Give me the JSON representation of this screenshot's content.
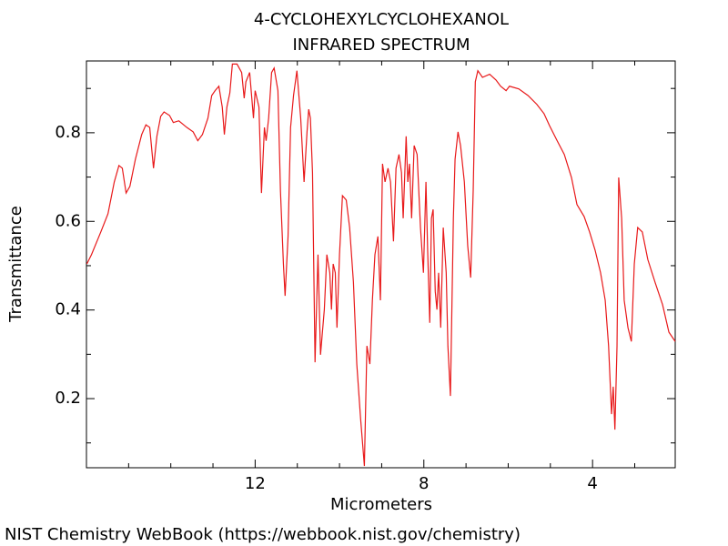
{
  "chart_data": {
    "type": "line",
    "title": "4-CYCLOHEXYLCYCLOHEXANOL",
    "subtitle": "INFRARED SPECTRUM",
    "x_label": "Micrometers",
    "y_label": "Transmittance",
    "source": "NIST Chemistry WebBook (https://webbook.nist.gov/chemistry)",
    "xlim": [
      16,
      2.04
    ],
    "ylim": [
      0.044,
      0.962
    ],
    "xticks": [
      12,
      8,
      4
    ],
    "yticks": [
      0.2,
      0.4,
      0.6,
      0.8
    ],
    "xminorticks": [
      15,
      14,
      13,
      11,
      10,
      9,
      7,
      6,
      5,
      3
    ],
    "yminorticks": [
      0.1,
      0.3,
      0.5,
      0.7,
      0.9
    ],
    "series": [
      {
        "color": "#e8191a",
        "x": [
          15.99,
          15.88,
          15.66,
          15.49,
          15.34,
          15.23,
          15.15,
          15.06,
          14.97,
          14.84,
          14.69,
          14.59,
          14.5,
          14.41,
          14.33,
          14.24,
          14.16,
          14.03,
          13.94,
          13.81,
          13.62,
          13.47,
          13.36,
          13.25,
          13.12,
          13.03,
          12.95,
          12.86,
          12.78,
          12.73,
          12.67,
          12.6,
          12.54,
          12.43,
          12.32,
          12.26,
          12.22,
          12.13,
          12.04,
          12.0,
          11.91,
          11.85,
          11.78,
          11.74,
          11.68,
          11.61,
          11.55,
          11.46,
          11.4,
          11.33,
          11.29,
          11.22,
          11.16,
          11.09,
          11.01,
          10.92,
          10.84,
          10.77,
          10.73,
          10.69,
          10.64,
          10.58,
          10.51,
          10.45,
          10.36,
          10.3,
          10.23,
          10.19,
          10.15,
          10.1,
          10.06,
          10.0,
          9.93,
          9.84,
          9.76,
          9.67,
          9.59,
          9.5,
          9.41,
          9.35,
          9.28,
          9.22,
          9.16,
          9.09,
          9.03,
          8.98,
          8.92,
          8.85,
          8.79,
          8.72,
          8.66,
          8.59,
          8.53,
          8.49,
          8.42,
          8.38,
          8.34,
          8.29,
          8.23,
          8.16,
          8.08,
          8.01,
          7.95,
          7.91,
          7.86,
          7.82,
          7.78,
          7.73,
          7.69,
          7.65,
          7.6,
          7.54,
          7.47,
          7.43,
          7.37,
          7.3,
          7.26,
          7.19,
          7.13,
          7.04,
          6.96,
          6.89,
          6.83,
          6.78,
          6.72,
          6.61,
          6.44,
          6.29,
          6.18,
          6.05,
          5.97,
          5.75,
          5.53,
          5.32,
          5.15,
          5.02,
          4.84,
          4.67,
          4.5,
          4.37,
          4.2,
          4.07,
          3.94,
          3.81,
          3.7,
          3.62,
          3.55,
          3.51,
          3.47,
          3.42,
          3.38,
          3.31,
          3.25,
          3.16,
          3.08,
          3.01,
          2.93,
          2.82,
          2.69,
          2.52,
          2.34,
          2.19,
          2.04
        ],
        "values": [
          0.504,
          0.525,
          0.576,
          0.617,
          0.689,
          0.726,
          0.72,
          0.664,
          0.679,
          0.74,
          0.796,
          0.818,
          0.812,
          0.72,
          0.792,
          0.837,
          0.847,
          0.839,
          0.823,
          0.827,
          0.812,
          0.802,
          0.782,
          0.796,
          0.833,
          0.884,
          0.895,
          0.905,
          0.858,
          0.796,
          0.858,
          0.89,
          0.955,
          0.955,
          0.936,
          0.878,
          0.915,
          0.936,
          0.833,
          0.895,
          0.858,
          0.664,
          0.812,
          0.782,
          0.833,
          0.936,
          0.946,
          0.895,
          0.669,
          0.504,
          0.432,
          0.566,
          0.812,
          0.884,
          0.94,
          0.833,
          0.689,
          0.802,
          0.853,
          0.833,
          0.71,
          0.282,
          0.525,
          0.299,
          0.401,
          0.525,
          0.484,
          0.401,
          0.504,
          0.484,
          0.36,
          0.525,
          0.658,
          0.648,
          0.586,
          0.463,
          0.278,
          0.155,
          0.048,
          0.319,
          0.278,
          0.422,
          0.525,
          0.566,
          0.422,
          0.73,
          0.689,
          0.72,
          0.689,
          0.555,
          0.72,
          0.751,
          0.71,
          0.607,
          0.792,
          0.689,
          0.73,
          0.607,
          0.771,
          0.751,
          0.586,
          0.484,
          0.689,
          0.535,
          0.371,
          0.607,
          0.627,
          0.442,
          0.401,
          0.484,
          0.36,
          0.586,
          0.484,
          0.319,
          0.206,
          0.607,
          0.74,
          0.802,
          0.771,
          0.689,
          0.545,
          0.473,
          0.669,
          0.915,
          0.94,
          0.925,
          0.932,
          0.919,
          0.905,
          0.895,
          0.905,
          0.899,
          0.884,
          0.864,
          0.843,
          0.816,
          0.782,
          0.751,
          0.699,
          0.638,
          0.611,
          0.576,
          0.535,
          0.484,
          0.422,
          0.319,
          0.165,
          0.227,
          0.13,
          0.319,
          0.699,
          0.607,
          0.422,
          0.36,
          0.329,
          0.504,
          0.586,
          0.576,
          0.514,
          0.463,
          0.412,
          0.35,
          0.329
        ]
      }
    ]
  }
}
